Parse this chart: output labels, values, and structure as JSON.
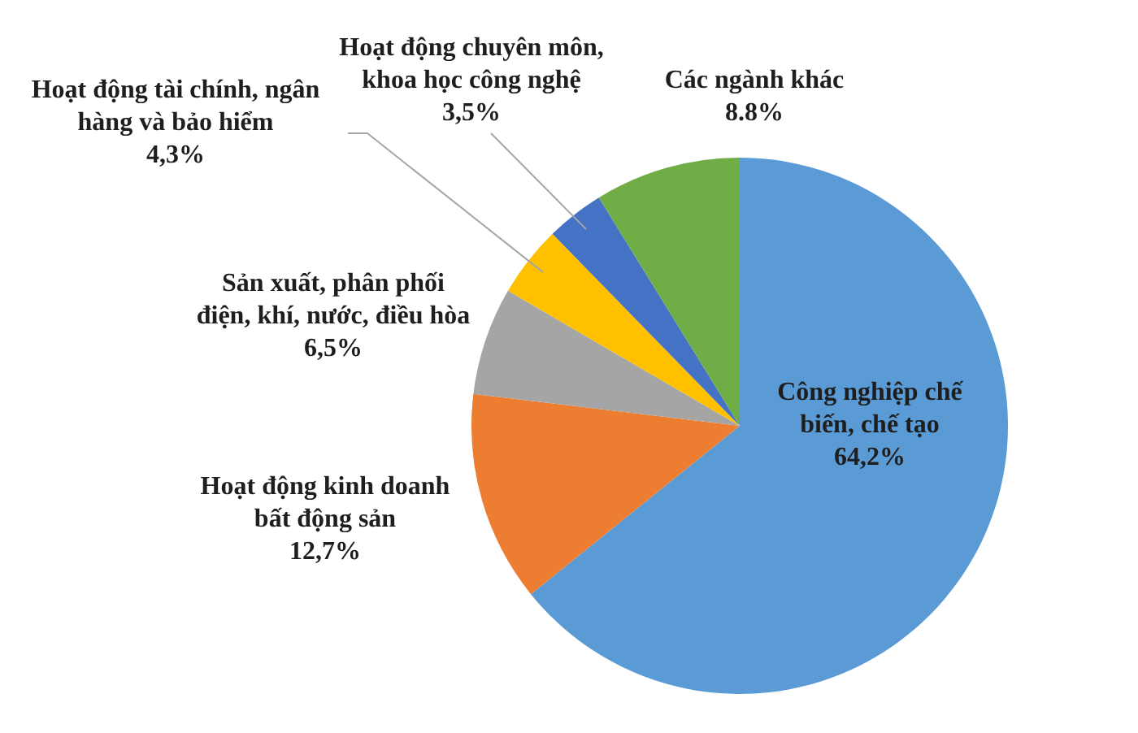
{
  "chart_data": {
    "type": "pie",
    "categories": [
      "Công nghiệp chế biến, chế tạo",
      "Hoạt động kinh doanh bất động sản",
      "Sản xuất, phân phối điện, khí, nước, điều hòa",
      "Hoạt động tài chính, ngân hàng và bảo hiểm",
      "Hoạt động chuyên môn, khoa học công nghệ",
      "Các ngành khác"
    ],
    "values": [
      64.2,
      12.7,
      6.5,
      4.3,
      3.5,
      8.8
    ],
    "colors": [
      "#5b9bd5",
      "#ed7d31",
      "#a5a5a5",
      "#ffc000",
      "#4472c4",
      "#70ad47"
    ],
    "value_labels": [
      "64,2%",
      "12,7%",
      "6,5%",
      "4,3%",
      "3,5%",
      "8.8%"
    ]
  }
}
